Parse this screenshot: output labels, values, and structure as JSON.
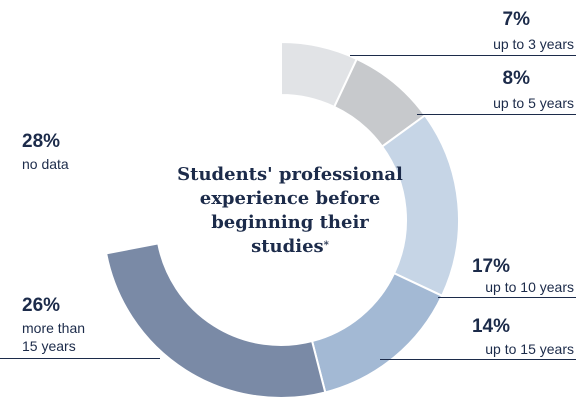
{
  "chart_data": {
    "type": "pie",
    "variant": "donut",
    "title": "Students' professional experience before beginning their studies",
    "title_note_marker": "*",
    "categories": [
      "up to 3 years",
      "up to 5 years",
      "up to 10 years",
      "up to 15 years",
      "more than 15 years",
      "no data"
    ],
    "values": [
      7,
      8,
      17,
      14,
      26,
      28
    ],
    "unit": "%",
    "slices": [
      {
        "label": "up to 3 years",
        "value": 7,
        "display": "7%",
        "color": "#e1e3e6"
      },
      {
        "label": "up to 5 years",
        "value": 8,
        "display": "8%",
        "color": "#c7c9cc"
      },
      {
        "label": "up to 10 years",
        "value": 17,
        "display": "17%",
        "color": "#c6d5e6"
      },
      {
        "label": "up to 15 years",
        "value": 14,
        "display": "14%",
        "color": "#a3b9d4"
      },
      {
        "label": "more than 15 years",
        "label_lines": [
          "more than",
          "15 years"
        ],
        "value": 26,
        "display": "26%",
        "color": "#7a8aa6"
      },
      {
        "label": "no data",
        "value": 28,
        "display": "28%",
        "color": null
      }
    ],
    "start_angle_deg": 0,
    "legend": "none"
  },
  "colors": {
    "text": "#1c2b4a",
    "background": "#ffffff"
  }
}
